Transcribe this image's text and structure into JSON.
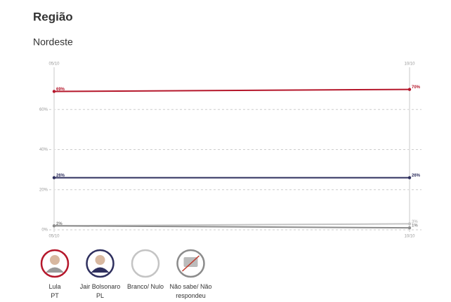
{
  "title": "Região",
  "chart_data": {
    "type": "line",
    "subtitle": "Nordeste",
    "x": [
      "05/10",
      "10/10"
    ],
    "ylim": [
      0,
      80
    ],
    "yticks": [
      {
        "value": 0,
        "label": "0%"
      },
      {
        "value": 20,
        "label": "20%"
      },
      {
        "value": 40,
        "label": "40%"
      },
      {
        "value": 60,
        "label": "60%"
      }
    ],
    "grid": true,
    "series": [
      {
        "name": "Lula",
        "party": "PT",
        "color": "#b5172b",
        "values": [
          69,
          70
        ],
        "value_labels": [
          "69%",
          "70%"
        ]
      },
      {
        "name": "Jair Bolsonaro",
        "party": "PL",
        "color": "#2e2f5e",
        "values": [
          26,
          26
        ],
        "value_labels": [
          "26%",
          "26%"
        ]
      },
      {
        "name": "Branco/ Nulo",
        "color": "#c4c4c4",
        "values": [
          2,
          3
        ],
        "value_labels": [
          "2%",
          "3%"
        ]
      },
      {
        "name": "Não sabe/ Não respondeu",
        "color": "#8c8c8c",
        "values": [
          2,
          1
        ],
        "value_labels": [
          "2%",
          "1%"
        ]
      }
    ]
  }
}
